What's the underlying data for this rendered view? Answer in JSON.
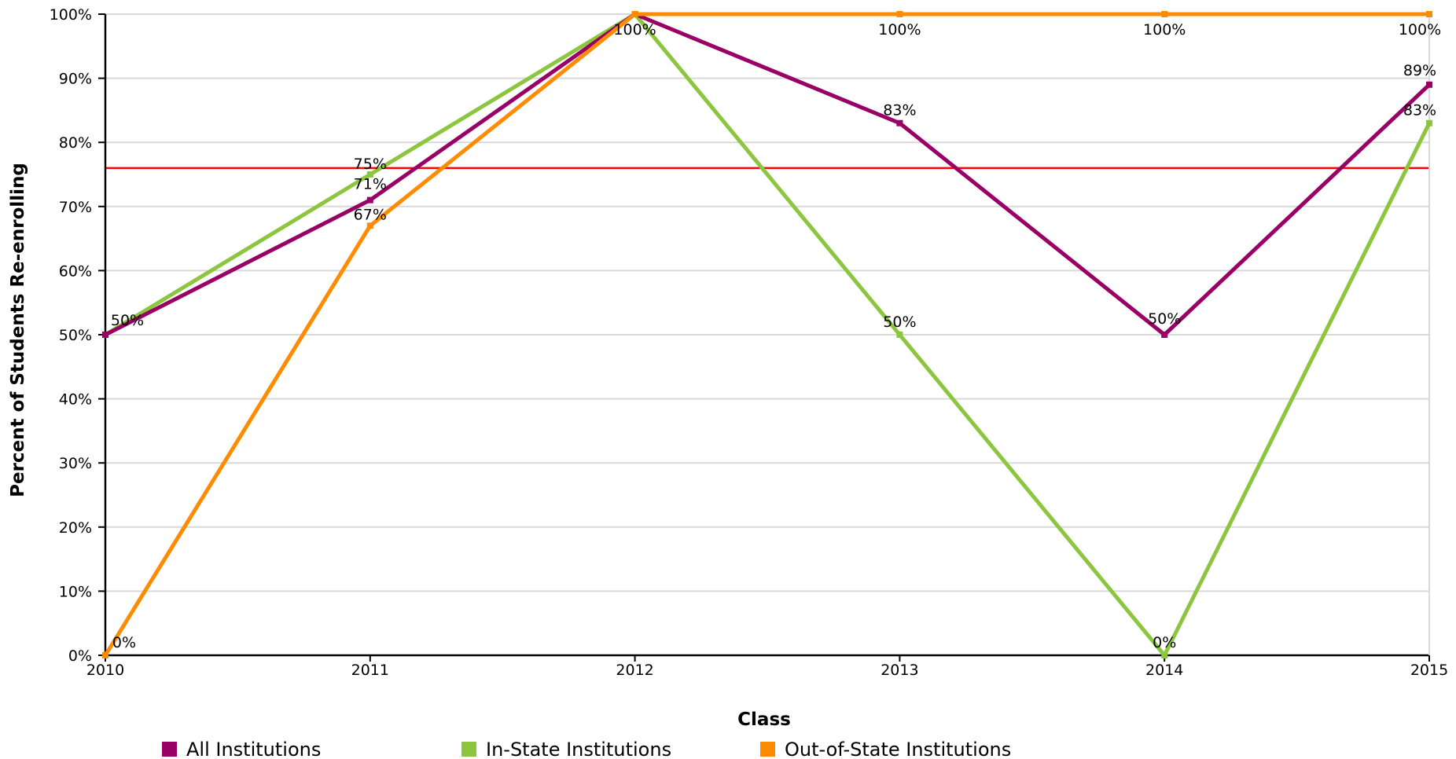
{
  "chart_data": {
    "type": "line",
    "x": [
      "2010",
      "2011",
      "2012",
      "2013",
      "2014",
      "2015"
    ],
    "xlabel": "Class",
    "ylabel": "Percent of Students Re-enrolling",
    "ylim": [
      0,
      100
    ],
    "yticks": [
      "0%",
      "10%",
      "20%",
      "30%",
      "40%",
      "50%",
      "60%",
      "70%",
      "80%",
      "90%",
      "100%"
    ],
    "grid": true,
    "legend_position": "bottom",
    "reference_line": {
      "value": 76,
      "color": "#ff0000"
    },
    "series": [
      {
        "name": "All Institutions",
        "color": "#990066",
        "values": [
          50,
          71,
          100,
          83,
          50,
          89
        ],
        "labels": [
          "50%",
          "71%",
          "",
          "83%",
          "50%",
          "89%"
        ]
      },
      {
        "name": "In-State Institutions",
        "color": "#8cc63f",
        "values": [
          50,
          75,
          100,
          50,
          0,
          83
        ],
        "labels": [
          "",
          "75%",
          "",
          "50%",
          "0%",
          "83%"
        ]
      },
      {
        "name": "Out-of-State Institutions",
        "color": "#ff8c00",
        "values": [
          0,
          67,
          100,
          100,
          100,
          100
        ],
        "labels": [
          "0%",
          "67%",
          "100%",
          "100%",
          "100%",
          "100%"
        ]
      }
    ]
  }
}
